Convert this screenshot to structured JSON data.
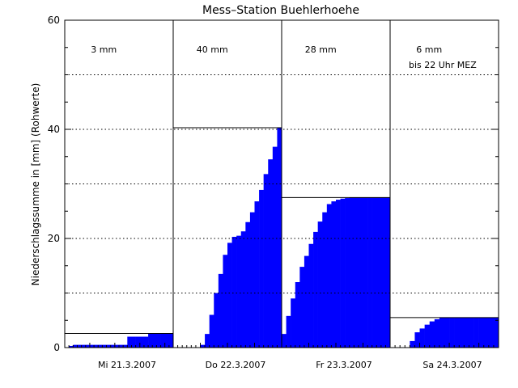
{
  "chart_data": {
    "type": "area",
    "title": "Mess–Station Buehlerhoehe",
    "ylabel": "Niederschlagssumme in [mm] (Rohwerte)",
    "xlabel": "",
    "ylim": [
      0,
      60
    ],
    "yticks": [
      0,
      20,
      40,
      60
    ],
    "grid": "dotted horizontal",
    "colors": {
      "fill": "#0000ff",
      "line": "#000000",
      "grid": "#000000"
    },
    "note": "bis 22 Uhr MEZ",
    "days": [
      {
        "label": "Mi 21.3.2007",
        "total_label": "3 mm",
        "total": 2.6,
        "values": [
          0,
          0.3,
          0.5,
          0.5,
          0.5,
          0.5,
          0.5,
          0.5,
          0.5,
          0.5,
          0.5,
          0.5,
          0.5,
          0.5,
          0.5,
          2.0,
          2.0,
          2.0,
          2.0,
          2.0,
          2.6,
          2.6,
          2.6,
          2.6,
          2.6,
          2.6
        ]
      },
      {
        "label": "Do 22.3.2007",
        "total_label": "40 mm",
        "total": 40.3,
        "values": [
          0,
          0,
          0,
          0,
          0,
          0,
          0.5,
          2.5,
          6,
          10,
          13.5,
          17,
          19.2,
          20.3,
          20.5,
          21.3,
          23,
          24.8,
          26.8,
          28.9,
          31.8,
          34.5,
          36.8,
          40.3
        ]
      },
      {
        "label": "Fr 23.3.2007",
        "total_label": "28 mm",
        "total": 27.5,
        "values": [
          2.5,
          5.8,
          9,
          12,
          14.8,
          16.8,
          19,
          21.2,
          23.1,
          24.8,
          26.3,
          26.8,
          27.1,
          27.3,
          27.4,
          27.5,
          27.5,
          27.5,
          27.5,
          27.5,
          27.5,
          27.5,
          27.5,
          27.5
        ]
      },
      {
        "label": "Sa 24.3.2007",
        "total_label": "6 mm",
        "total": 5.5,
        "values": [
          0,
          0,
          0,
          0,
          1.2,
          2.8,
          3.5,
          4.2,
          4.8,
          5.2,
          5.5,
          5.5,
          5.5,
          5.5,
          5.5,
          5.5,
          5.5,
          5.5,
          5.5,
          5.5,
          5.5,
          5.5
        ]
      }
    ]
  }
}
